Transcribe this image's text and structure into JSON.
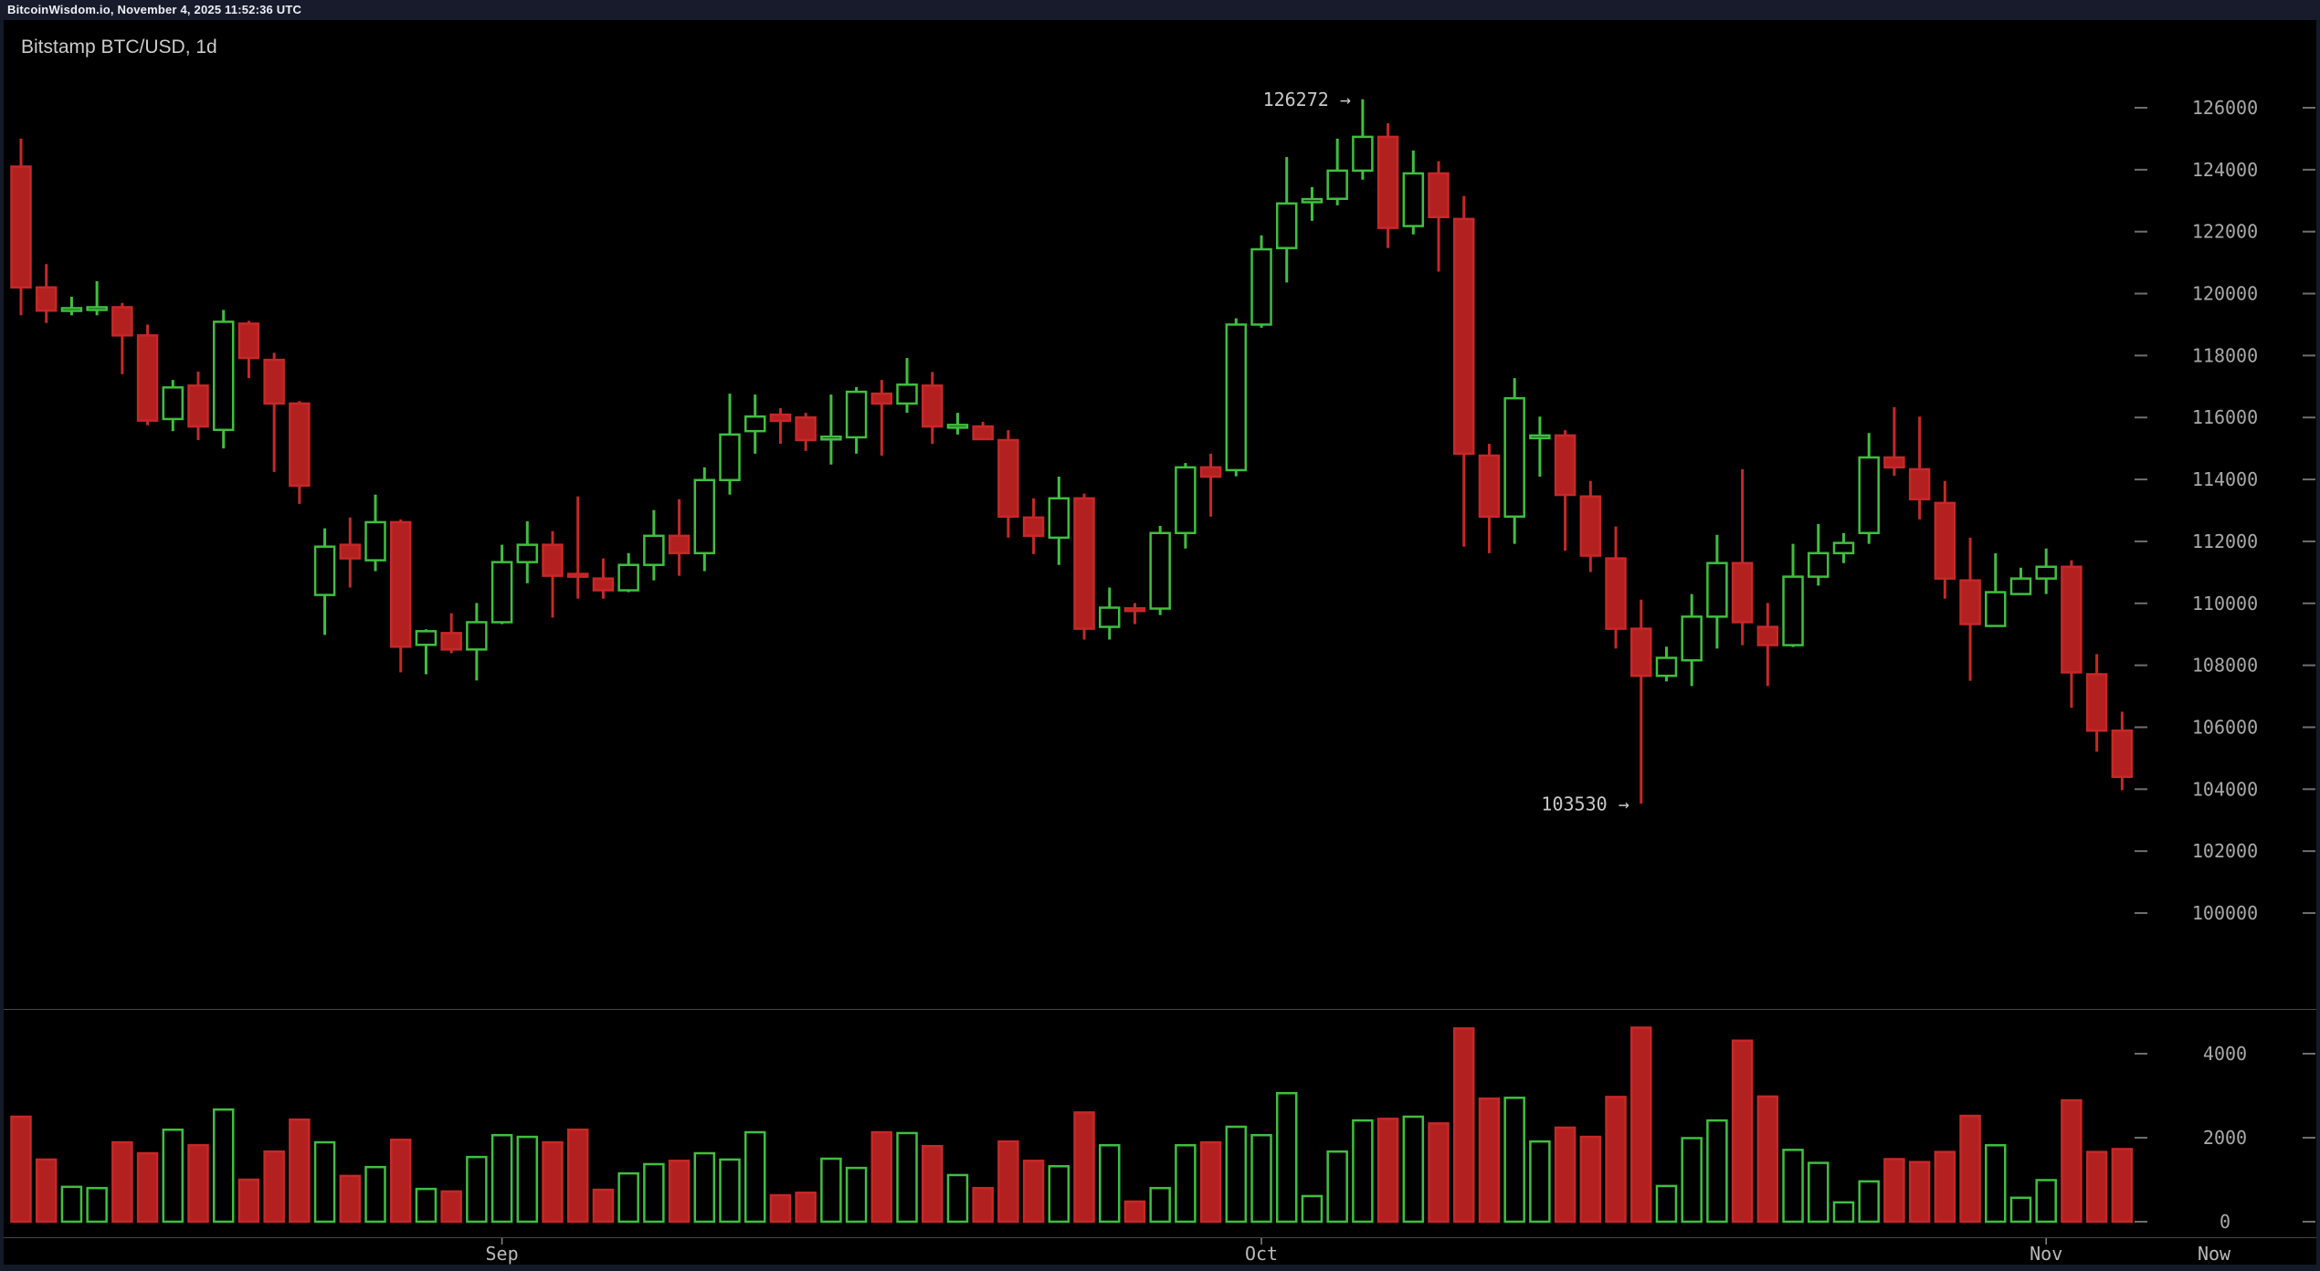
{
  "status_bar": {
    "text": "BitcoinWisdom.io, November 4, 2025 11:52:36 UTC"
  },
  "title": "Bitstamp BTC/USD, 1d",
  "x_axis": {
    "labels": [
      "Sep",
      "Oct",
      "Nov",
      "Now"
    ],
    "now_label": "Now"
  },
  "price_axis": {
    "ticks": [
      126000,
      124000,
      122000,
      120000,
      118000,
      116000,
      114000,
      112000,
      110000,
      108000,
      106000,
      104000,
      102000,
      100000
    ]
  },
  "volume_axis": {
    "ticks": [
      4000,
      2000,
      0
    ]
  },
  "annotations": {
    "high": {
      "text": "126272 →",
      "value": 126272
    },
    "low": {
      "text": "103530 →",
      "value": 103530
    }
  },
  "colors": {
    "up": "#3fbf3f",
    "down_fill": "#b32020",
    "down_stroke": "#c62828",
    "background": "#000000",
    "frame": "#151a28",
    "status_bg": "#171b2b",
    "axis_text": "#a9a9a9",
    "time_text": "#b9b9b9",
    "tick_dash": "#6e6e6e",
    "divider": "#454545",
    "annotation_text": "#c9c9c9",
    "title_text": "#cccccc"
  },
  "chart_data": {
    "type": "candlestick",
    "title": "Bitstamp BTC/USD, 1d",
    "exchange": "Bitstamp",
    "pair": "BTC/USD",
    "interval": "1d",
    "legend_position": "none",
    "grid": false,
    "price_axis_ticks": [
      126000,
      124000,
      122000,
      120000,
      118000,
      116000,
      114000,
      112000,
      110000,
      108000,
      106000,
      104000,
      102000,
      100000
    ],
    "volume_axis_ticks": [
      4000,
      2000,
      0
    ],
    "x_tick_labels": [
      "Sep",
      "Oct",
      "Nov",
      "Now"
    ],
    "labeled_high": 126272,
    "labeled_low": 103530,
    "columns": [
      "date",
      "open",
      "high",
      "low",
      "close",
      "volume"
    ],
    "candles": [
      [
        "2025-08-13",
        124100,
        125000,
        119300,
        120200,
        2500
      ],
      [
        "2025-08-14",
        120200,
        120950,
        119050,
        119450,
        1480
      ],
      [
        "2025-08-15",
        119450,
        119900,
        119300,
        119530,
        830
      ],
      [
        "2025-08-16",
        119530,
        120400,
        119300,
        119560,
        800
      ],
      [
        "2025-08-17",
        119560,
        119700,
        117400,
        118650,
        1890
      ],
      [
        "2025-08-18",
        118650,
        119000,
        115750,
        115900,
        1630
      ],
      [
        "2025-08-19",
        115950,
        117210,
        115560,
        116970,
        2190
      ],
      [
        "2025-08-20",
        117030,
        117480,
        115270,
        115710,
        1820
      ],
      [
        "2025-08-21",
        115600,
        119470,
        115000,
        119090,
        2670
      ],
      [
        "2025-08-22",
        119030,
        119120,
        117270,
        117920,
        1000
      ],
      [
        "2025-08-23",
        117860,
        118090,
        114240,
        116450,
        1670
      ],
      [
        "2025-08-24",
        116450,
        116530,
        113210,
        113800,
        2430
      ],
      [
        "2025-08-25",
        110270,
        112420,
        108980,
        111830,
        1890
      ],
      [
        "2025-08-26",
        111890,
        112770,
        110510,
        111450,
        1090
      ],
      [
        "2025-08-27",
        111390,
        113510,
        111040,
        112620,
        1300
      ],
      [
        "2025-08-28",
        112620,
        112710,
        107770,
        108600,
        1950
      ],
      [
        "2025-08-29",
        108660,
        109160,
        107710,
        109100,
        780
      ],
      [
        "2025-08-30",
        109040,
        109680,
        108390,
        108510,
        720
      ],
      [
        "2025-08-31",
        108510,
        110010,
        107510,
        109390,
        1540
      ],
      [
        "2025-09-01",
        109390,
        111890,
        109330,
        111330,
        2060
      ],
      [
        "2025-09-02",
        111330,
        112650,
        110650,
        111890,
        2020
      ],
      [
        "2025-09-03",
        111890,
        112330,
        109540,
        110890,
        1890
      ],
      [
        "2025-09-04",
        110950,
        113450,
        110150,
        110860,
        2190
      ],
      [
        "2025-09-05",
        110800,
        111450,
        110150,
        110420,
        760
      ],
      [
        "2025-09-06",
        110420,
        111620,
        110360,
        111240,
        1150
      ],
      [
        "2025-09-07",
        111240,
        113010,
        110740,
        112180,
        1370
      ],
      [
        "2025-09-08",
        112180,
        113360,
        110890,
        111620,
        1450
      ],
      [
        "2025-09-09",
        111620,
        114390,
        111040,
        113980,
        1630
      ],
      [
        "2025-09-10",
        113980,
        116770,
        113510,
        115450,
        1480
      ],
      [
        "2025-09-11",
        115560,
        116740,
        114830,
        116030,
        2130
      ],
      [
        "2025-09-12",
        116090,
        116300,
        115150,
        115890,
        630
      ],
      [
        "2025-09-13",
        116000,
        116150,
        114920,
        115270,
        690
      ],
      [
        "2025-09-14",
        115340,
        116740,
        114480,
        115380,
        1500
      ],
      [
        "2025-09-15",
        115360,
        116980,
        114830,
        116830,
        1280
      ],
      [
        "2025-09-16",
        116770,
        117210,
        114770,
        116450,
        2130
      ],
      [
        "2025-09-17",
        116450,
        117920,
        116150,
        117060,
        2110
      ],
      [
        "2025-09-18",
        117030,
        117470,
        115150,
        115710,
        1800
      ],
      [
        "2025-09-19",
        115740,
        116150,
        115450,
        115760,
        1110
      ],
      [
        "2025-09-20",
        115710,
        115860,
        115270,
        115300,
        800
      ],
      [
        "2025-09-21",
        115270,
        115590,
        112120,
        112800,
        1910
      ],
      [
        "2025-09-22",
        112770,
        113390,
        111590,
        112180,
        1450
      ],
      [
        "2025-09-23",
        112120,
        114090,
        111240,
        113390,
        1320
      ],
      [
        "2025-09-24",
        113390,
        113540,
        108830,
        109180,
        2600
      ],
      [
        "2025-09-25",
        109240,
        110510,
        108830,
        109860,
        1820
      ],
      [
        "2025-09-26",
        109840,
        110010,
        109330,
        109800,
        480
      ],
      [
        "2025-09-27",
        109830,
        112500,
        109620,
        112270,
        800
      ],
      [
        "2025-09-28",
        112270,
        114530,
        111770,
        114390,
        1820
      ],
      [
        "2025-09-29",
        114390,
        114830,
        112800,
        114090,
        1890
      ],
      [
        "2025-09-30",
        114300,
        119200,
        114100,
        119000,
        2260
      ],
      [
        "2025-10-01",
        119000,
        121880,
        118900,
        121430,
        2060
      ],
      [
        "2025-10-02",
        121470,
        124410,
        120360,
        122910,
        3060
      ],
      [
        "2025-10-03",
        122950,
        123440,
        122350,
        123050,
        610
      ],
      [
        "2025-10-04",
        123060,
        125000,
        122850,
        123970,
        1670
      ],
      [
        "2025-10-05",
        123970,
        126272,
        123680,
        125060,
        2410
      ],
      [
        "2025-10-06",
        125060,
        125500,
        121470,
        122120,
        2450
      ],
      [
        "2025-10-07",
        122180,
        124620,
        121910,
        123880,
        2500
      ],
      [
        "2025-10-08",
        123880,
        124270,
        120710,
        122470,
        2340
      ],
      [
        "2025-10-09",
        122410,
        123150,
        111830,
        114830,
        4600
      ],
      [
        "2025-10-10",
        114770,
        115150,
        111620,
        112800,
        2930
      ],
      [
        "2025-10-11",
        112800,
        117270,
        111920,
        116620,
        2950
      ],
      [
        "2025-10-12",
        115350,
        116030,
        114090,
        115420,
        1910
      ],
      [
        "2025-10-13",
        115420,
        115590,
        111700,
        113500,
        2240
      ],
      [
        "2025-10-14",
        113450,
        113950,
        111010,
        111540,
        2020
      ],
      [
        "2025-10-15",
        111450,
        112480,
        108540,
        109180,
        2970
      ],
      [
        "2025-10-16",
        109180,
        110120,
        103530,
        107660,
        4620
      ],
      [
        "2025-10-17",
        107660,
        108600,
        107480,
        108240,
        850
      ],
      [
        "2025-10-18",
        108160,
        110300,
        107330,
        109570,
        1990
      ],
      [
        "2025-10-19",
        109570,
        112210,
        108540,
        111300,
        2410
      ],
      [
        "2025-10-20",
        111300,
        114330,
        108650,
        109390,
        4310
      ],
      [
        "2025-10-21",
        109240,
        110010,
        107330,
        108650,
        2980
      ],
      [
        "2025-10-22",
        108650,
        111920,
        108590,
        110860,
        1710
      ],
      [
        "2025-10-23",
        110860,
        112560,
        110570,
        111620,
        1400
      ],
      [
        "2025-10-24",
        111620,
        112270,
        111300,
        111950,
        460
      ],
      [
        "2025-10-25",
        112270,
        115500,
        111920,
        114710,
        960
      ],
      [
        "2025-10-26",
        114710,
        116330,
        114120,
        114390,
        1490
      ],
      [
        "2025-10-27",
        114330,
        116030,
        112710,
        113360,
        1420
      ],
      [
        "2025-10-28",
        113240,
        113950,
        110150,
        110800,
        1660
      ],
      [
        "2025-10-29",
        110740,
        112120,
        107500,
        109330,
        2520
      ],
      [
        "2025-10-30",
        109270,
        111620,
        109240,
        110360,
        1820
      ],
      [
        "2025-10-31",
        110300,
        111150,
        110270,
        110800,
        570
      ],
      [
        "2025-11-01",
        110800,
        111770,
        110300,
        111180,
        990
      ],
      [
        "2025-11-02",
        111180,
        111390,
        106630,
        107770,
        2890
      ],
      [
        "2025-11-03",
        107710,
        108360,
        105210,
        105890,
        1660
      ],
      [
        "2025-11-04",
        105890,
        106500,
        103970,
        104400,
        1730
      ]
    ]
  }
}
